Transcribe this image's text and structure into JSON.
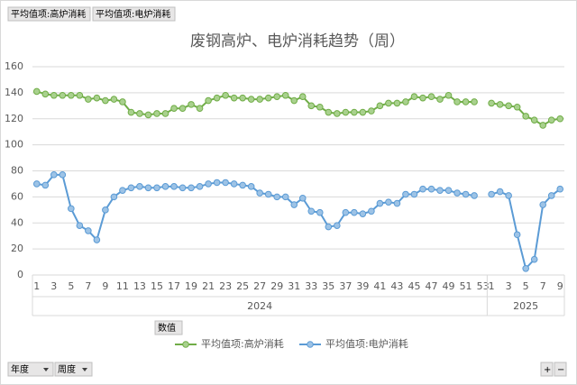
{
  "chart_data": {
    "type": "line",
    "title": "废钢高炉、电炉消耗趋势（周）",
    "filter_buttons": [
      "平均值项:高炉消耗",
      "平均值项:电炉消耗"
    ],
    "values_button": "数值",
    "axis_buttons": [
      "年度",
      "周度"
    ],
    "zoom_buttons": [
      "+",
      "−"
    ],
    "group_labels": [
      "2024",
      "2025"
    ],
    "group_sizes": [
      53,
      9
    ],
    "categories": [
      "1",
      null,
      "3",
      null,
      "5",
      null,
      "7",
      null,
      "9",
      null,
      "11",
      null,
      "13",
      null,
      "15",
      null,
      "17",
      null,
      "19",
      null,
      "21",
      null,
      "23",
      null,
      "25",
      null,
      "27",
      null,
      "29",
      null,
      "31",
      null,
      "33",
      null,
      "35",
      null,
      "37",
      null,
      "39",
      null,
      "41",
      null,
      "43",
      null,
      "45",
      null,
      "47",
      null,
      "49",
      null,
      "51",
      null,
      "53",
      "1",
      null,
      "3",
      null,
      "5",
      null,
      "7",
      null,
      "9"
    ],
    "series": [
      {
        "name": "平均值项:高炉消耗",
        "color": "#70ad47",
        "marker_color": "#a9d18e",
        "values": [
          141,
          139,
          138,
          138,
          138,
          138,
          135,
          136,
          134,
          135,
          133,
          125,
          124,
          123,
          124,
          124,
          128,
          128,
          131,
          128,
          134,
          136,
          138,
          136,
          136,
          135,
          135,
          136,
          137,
          138,
          134,
          137,
          130,
          129,
          125,
          124,
          125,
          125,
          125,
          126,
          130,
          132,
          132,
          133,
          137,
          136,
          137,
          135,
          138,
          133,
          133,
          133,
          null,
          132,
          131,
          130,
          129,
          122,
          119,
          115,
          119,
          120
        ]
      },
      {
        "name": "平均值项:电炉消耗",
        "color": "#5b9bd5",
        "marker_color": "#9dc3e6",
        "values": [
          70,
          69,
          77,
          77,
          51,
          38,
          34,
          27,
          50,
          60,
          65,
          67,
          68,
          67,
          67,
          68,
          68,
          67,
          67,
          68,
          70,
          71,
          71,
          70,
          69,
          68,
          63,
          62,
          60,
          60,
          54,
          59,
          49,
          48,
          37,
          38,
          48,
          48,
          47,
          49,
          55,
          56,
          55,
          62,
          62,
          66,
          66,
          65,
          65,
          63,
          62,
          61,
          null,
          62,
          64,
          61,
          31,
          5,
          12,
          54,
          61,
          66
        ]
      }
    ],
    "ylim": [
      0,
      160
    ],
    "yticks": [
      0,
      20,
      40,
      60,
      80,
      100,
      120,
      140,
      160
    ],
    "grid": true,
    "legend": "bottom"
  }
}
